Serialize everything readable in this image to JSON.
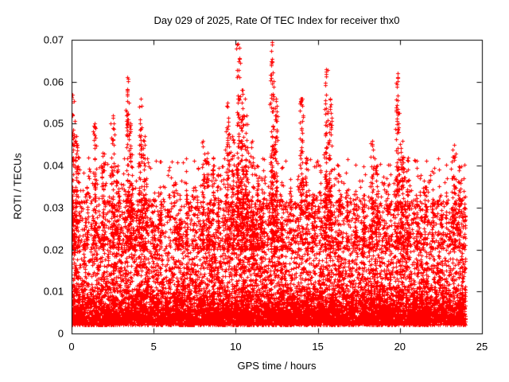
{
  "chart_data": {
    "type": "scatter",
    "title": "Day 029 of 2025, Rate Of TEC Index for receiver thx0",
    "xlabel": "GPS time / hours",
    "ylabel": "ROTI / TECUs",
    "xlim": [
      0,
      25
    ],
    "ylim": [
      0,
      0.07
    ],
    "xticks": [
      0,
      5,
      10,
      15,
      20,
      25
    ],
    "xtick_labels": [
      "0",
      "5",
      "10",
      "15",
      "20",
      "25"
    ],
    "yticks": [
      0,
      0.01,
      0.02,
      0.03,
      0.04,
      0.05,
      0.06,
      0.07
    ],
    "ytick_labels": [
      "0",
      "0.01",
      "0.02",
      "0.03",
      "0.04",
      "0.05",
      "0.06",
      "0.07"
    ],
    "grid": false,
    "legend": "none",
    "marker": "plus",
    "marker_color": "#ff0000",
    "x_data_range": [
      0,
      24
    ],
    "baseline_band": {
      "y_min": 0.002,
      "y_dense_max": 0.02,
      "y_max": 0.032
    },
    "points": {
      "baseline": 9000,
      "mid": 1400,
      "high": 380
    },
    "seed": 29,
    "spikes": [
      {
        "x": 0.05,
        "y": 0.057
      },
      {
        "x": 0.3,
        "y": 0.047
      },
      {
        "x": 0.9,
        "y": 0.035
      },
      {
        "x": 1.4,
        "y": 0.05
      },
      {
        "x": 1.9,
        "y": 0.043
      },
      {
        "x": 2.5,
        "y": 0.052
      },
      {
        "x": 2.8,
        "y": 0.04
      },
      {
        "x": 3.4,
        "y": 0.061
      },
      {
        "x": 3.6,
        "y": 0.05
      },
      {
        "x": 4.2,
        "y": 0.056
      },
      {
        "x": 4.45,
        "y": 0.047
      },
      {
        "x": 5.0,
        "y": 0.032
      },
      {
        "x": 5.4,
        "y": 0.035
      },
      {
        "x": 6.3,
        "y": 0.036
      },
      {
        "x": 6.6,
        "y": 0.033
      },
      {
        "x": 7.0,
        "y": 0.033
      },
      {
        "x": 7.5,
        "y": 0.035
      },
      {
        "x": 8.0,
        "y": 0.046
      },
      {
        "x": 8.3,
        "y": 0.043
      },
      {
        "x": 8.6,
        "y": 0.04
      },
      {
        "x": 8.9,
        "y": 0.038
      },
      {
        "x": 9.5,
        "y": 0.055
      },
      {
        "x": 9.8,
        "y": 0.047
      },
      {
        "x": 10.15,
        "y": 0.069
      },
      {
        "x": 10.4,
        "y": 0.058
      },
      {
        "x": 10.65,
        "y": 0.052
      },
      {
        "x": 11.0,
        "y": 0.046
      },
      {
        "x": 11.3,
        "y": 0.04
      },
      {
        "x": 11.6,
        "y": 0.037
      },
      {
        "x": 12.2,
        "y": 0.0695
      },
      {
        "x": 12.45,
        "y": 0.056
      },
      {
        "x": 12.8,
        "y": 0.036
      },
      {
        "x": 13.3,
        "y": 0.034
      },
      {
        "x": 14.0,
        "y": 0.056
      },
      {
        "x": 14.3,
        "y": 0.042
      },
      {
        "x": 14.8,
        "y": 0.033
      },
      {
        "x": 15.5,
        "y": 0.063
      },
      {
        "x": 15.75,
        "y": 0.056
      },
      {
        "x": 16.3,
        "y": 0.038
      },
      {
        "x": 16.8,
        "y": 0.033
      },
      {
        "x": 17.3,
        "y": 0.034
      },
      {
        "x": 17.8,
        "y": 0.033
      },
      {
        "x": 18.3,
        "y": 0.046
      },
      {
        "x": 18.6,
        "y": 0.04
      },
      {
        "x": 19.2,
        "y": 0.034
      },
      {
        "x": 19.85,
        "y": 0.062
      },
      {
        "x": 20.15,
        "y": 0.046
      },
      {
        "x": 20.5,
        "y": 0.042
      },
      {
        "x": 21.0,
        "y": 0.033
      },
      {
        "x": 21.5,
        "y": 0.035
      },
      {
        "x": 22.0,
        "y": 0.032
      },
      {
        "x": 22.5,
        "y": 0.033
      },
      {
        "x": 23.3,
        "y": 0.045
      },
      {
        "x": 23.6,
        "y": 0.036
      },
      {
        "x": 23.95,
        "y": 0.03
      }
    ]
  }
}
